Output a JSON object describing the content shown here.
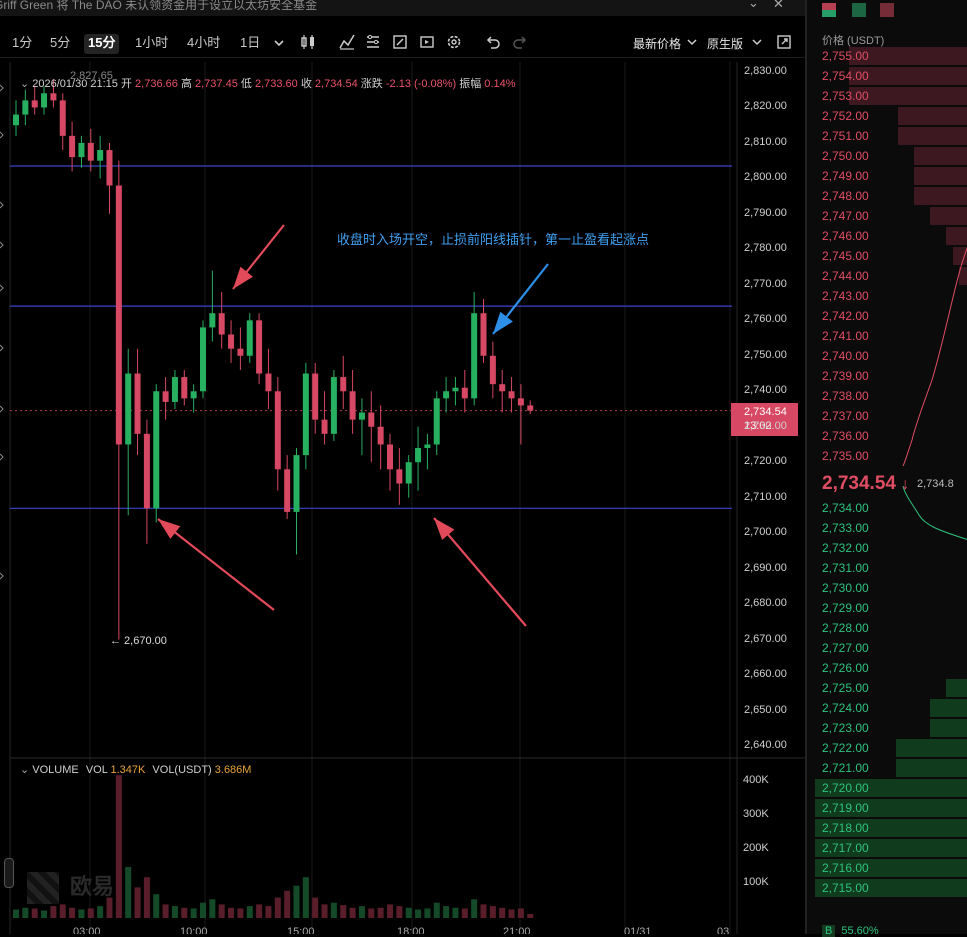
{
  "news_ticker": "Griff Green 将 The DAO 未认领资金用于设立以太坊安全基金",
  "window_controls": {
    "collapse": "⌄",
    "close": "✕"
  },
  "intervals": [
    {
      "label": "1分",
      "active": false
    },
    {
      "label": "5分",
      "active": false
    },
    {
      "label": "15分",
      "active": true
    },
    {
      "label": "1小时",
      "active": false
    },
    {
      "label": "4小时",
      "active": false
    },
    {
      "label": "1日",
      "active": false
    }
  ],
  "toolbar_icons": [
    "chevron-down-icon",
    "candle-type-icon",
    "indicators-icon",
    "template-icon",
    "drawing-icon",
    "replay-icon",
    "settings-icon",
    "undo-icon",
    "redo-icon"
  ],
  "price_type": "最新价格",
  "chart_style": "原生版",
  "ohlc": {
    "date": "2026/01/30 21:15",
    "open_label": "开",
    "open": "2,736.66",
    "high_label": "高",
    "high": "2,737.45",
    "low_label": "低",
    "low": "2,733.60",
    "close_label": "收",
    "close": "2,734.54",
    "change_label": "涨跌",
    "change": "-2.13 (-0.08%)",
    "amp_label": "振幅",
    "amp": "0.14%"
  },
  "max_label": "2,827.65",
  "min_label": "← 2,670.00",
  "annotation": "收盘时入场开空，止损前阳线插针，第一止盈看起涨点",
  "current_price_tag": {
    "price": "2,734.54",
    "countdown": "13:02"
  },
  "price_axis": [
    "2,830.00",
    "2,820.00",
    "2,810.00",
    "2,800.00",
    "2,790.00",
    "2,780.00",
    "2,770.00",
    "2,760.00",
    "2,750.00",
    "2,740.00",
    "2,730.00",
    "2,720.00",
    "2,710.00",
    "2,700.00",
    "2,690.00",
    "2,680.00",
    "2,670.00",
    "2,660.00",
    "2,650.00",
    "2,640.00"
  ],
  "volume": {
    "label": "VOLUME",
    "vol_label": "VOL",
    "vol": "1.347K",
    "vol_usdt_label": "VOL(USDT)",
    "vol_usdt": "3.686M"
  },
  "volume_axis": [
    "400K",
    "300K",
    "200K",
    "100K"
  ],
  "time_axis": [
    "03:00",
    "10:00",
    "15:00",
    "18:00",
    "21:00",
    "01/31",
    "03"
  ],
  "watermark": "欧易",
  "horizontal_levels": [
    2803.5,
    2764.0,
    2707.0
  ],
  "colors": {
    "up": "#27b060",
    "down": "#d64863",
    "level_line": "#3a45c8",
    "annotation": "#3f9ff0",
    "arrow_red": "#e24a5a",
    "arrow_blue": "#2e8fe8"
  },
  "chart_data": {
    "type": "candlestick",
    "ylim": [
      2640,
      2830
    ],
    "candles": [
      {
        "o": 2815,
        "h": 2822,
        "l": 2812,
        "c": 2818
      },
      {
        "o": 2818,
        "h": 2825,
        "l": 2815,
        "c": 2822
      },
      {
        "o": 2822,
        "h": 2826,
        "l": 2818,
        "c": 2820
      },
      {
        "o": 2820,
        "h": 2826,
        "l": 2818,
        "c": 2824
      },
      {
        "o": 2824,
        "h": 2828,
        "l": 2820,
        "c": 2822
      },
      {
        "o": 2822,
        "h": 2824,
        "l": 2808,
        "c": 2812
      },
      {
        "o": 2812,
        "h": 2816,
        "l": 2802,
        "c": 2806
      },
      {
        "o": 2806,
        "h": 2812,
        "l": 2803,
        "c": 2810
      },
      {
        "o": 2810,
        "h": 2814,
        "l": 2802,
        "c": 2805
      },
      {
        "o": 2805,
        "h": 2812,
        "l": 2800,
        "c": 2808
      },
      {
        "o": 2808,
        "h": 2810,
        "l": 2790,
        "c": 2798
      },
      {
        "o": 2798,
        "h": 2805,
        "l": 2670,
        "c": 2725
      },
      {
        "o": 2725,
        "h": 2752,
        "l": 2705,
        "c": 2745
      },
      {
        "o": 2745,
        "h": 2752,
        "l": 2722,
        "c": 2728
      },
      {
        "o": 2728,
        "h": 2732,
        "l": 2697,
        "c": 2707
      },
      {
        "o": 2707,
        "h": 2742,
        "l": 2703,
        "c": 2740
      },
      {
        "o": 2740,
        "h": 2744,
        "l": 2732,
        "c": 2737
      },
      {
        "o": 2737,
        "h": 2746,
        "l": 2735,
        "c": 2744
      },
      {
        "o": 2744,
        "h": 2746,
        "l": 2736,
        "c": 2738
      },
      {
        "o": 2738,
        "h": 2742,
        "l": 2734,
        "c": 2740
      },
      {
        "o": 2740,
        "h": 2760,
        "l": 2738,
        "c": 2758
      },
      {
        "o": 2758,
        "h": 2774,
        "l": 2754,
        "c": 2762
      },
      {
        "o": 2762,
        "h": 2768,
        "l": 2752,
        "c": 2756
      },
      {
        "o": 2756,
        "h": 2760,
        "l": 2748,
        "c": 2752
      },
      {
        "o": 2752,
        "h": 2758,
        "l": 2746,
        "c": 2750
      },
      {
        "o": 2750,
        "h": 2762,
        "l": 2748,
        "c": 2760
      },
      {
        "o": 2760,
        "h": 2762,
        "l": 2742,
        "c": 2745
      },
      {
        "o": 2745,
        "h": 2752,
        "l": 2735,
        "c": 2740
      },
      {
        "o": 2740,
        "h": 2744,
        "l": 2712,
        "c": 2718
      },
      {
        "o": 2718,
        "h": 2722,
        "l": 2704,
        "c": 2706
      },
      {
        "o": 2706,
        "h": 2724,
        "l": 2694,
        "c": 2722
      },
      {
        "o": 2722,
        "h": 2748,
        "l": 2718,
        "c": 2745
      },
      {
        "o": 2745,
        "h": 2748,
        "l": 2728,
        "c": 2732
      },
      {
        "o": 2732,
        "h": 2740,
        "l": 2725,
        "c": 2728
      },
      {
        "o": 2728,
        "h": 2746,
        "l": 2726,
        "c": 2744
      },
      {
        "o": 2744,
        "h": 2750,
        "l": 2735,
        "c": 2740
      },
      {
        "o": 2740,
        "h": 2746,
        "l": 2728,
        "c": 2732
      },
      {
        "o": 2732,
        "h": 2738,
        "l": 2722,
        "c": 2734
      },
      {
        "o": 2734,
        "h": 2740,
        "l": 2720,
        "c": 2730
      },
      {
        "o": 2730,
        "h": 2736,
        "l": 2718,
        "c": 2725
      },
      {
        "o": 2725,
        "h": 2728,
        "l": 2712,
        "c": 2718
      },
      {
        "o": 2718,
        "h": 2724,
        "l": 2708,
        "c": 2714
      },
      {
        "o": 2714,
        "h": 2722,
        "l": 2710,
        "c": 2720
      },
      {
        "o": 2720,
        "h": 2730,
        "l": 2712,
        "c": 2724
      },
      {
        "o": 2724,
        "h": 2728,
        "l": 2718,
        "c": 2725
      },
      {
        "o": 2725,
        "h": 2740,
        "l": 2722,
        "c": 2738
      },
      {
        "o": 2738,
        "h": 2744,
        "l": 2734,
        "c": 2740
      },
      {
        "o": 2740,
        "h": 2744,
        "l": 2736,
        "c": 2741
      },
      {
        "o": 2741,
        "h": 2746,
        "l": 2734,
        "c": 2738
      },
      {
        "o": 2738,
        "h": 2768,
        "l": 2736,
        "c": 2762
      },
      {
        "o": 2762,
        "h": 2766,
        "l": 2748,
        "c": 2750
      },
      {
        "o": 2750,
        "h": 2754,
        "l": 2738,
        "c": 2742
      },
      {
        "o": 2742,
        "h": 2746,
        "l": 2734,
        "c": 2740
      },
      {
        "o": 2740,
        "h": 2744,
        "l": 2734,
        "c": 2738
      },
      {
        "o": 2738,
        "h": 2742,
        "l": 2725,
        "c": 2736
      },
      {
        "o": 2736,
        "h": 2737.45,
        "l": 2733.6,
        "c": 2734.54
      }
    ],
    "volumes": [
      25,
      30,
      28,
      22,
      35,
      40,
      30,
      25,
      28,
      35,
      60,
      420,
      150,
      90,
      120,
      70,
      40,
      35,
      30,
      28,
      45,
      55,
      40,
      30,
      28,
      35,
      40,
      35,
      60,
      80,
      95,
      120,
      60,
      40,
      45,
      38,
      30,
      35,
      28,
      30,
      40,
      35,
      30,
      25,
      28,
      45,
      35,
      30,
      28,
      55,
      40,
      35,
      30,
      25,
      28,
      12
    ]
  },
  "orderbook": {
    "header": "价格 (USDT)",
    "asks": [
      {
        "price": "2,755.00",
        "depth": 0.74
      },
      {
        "price": "2,754.00",
        "depth": 0.74
      },
      {
        "price": "2,753.00",
        "depth": 0.74
      },
      {
        "price": "2,752.00",
        "depth": 0.44
      },
      {
        "price": "2,751.00",
        "depth": 0.44
      },
      {
        "price": "2,750.00",
        "depth": 0.34
      },
      {
        "price": "2,749.00",
        "depth": 0.34
      },
      {
        "price": "2,748.00",
        "depth": 0.34
      },
      {
        "price": "2,747.00",
        "depth": 0.24
      },
      {
        "price": "2,746.00",
        "depth": 0.14
      },
      {
        "price": "2,745.00",
        "depth": 0.1
      },
      {
        "price": "2,744.00",
        "depth": 0.06
      },
      {
        "price": "2,743.00",
        "depth": 0.0
      },
      {
        "price": "2,742.00",
        "depth": 0.0
      },
      {
        "price": "2,741.00",
        "depth": 0.0
      },
      {
        "price": "2,740.00",
        "depth": 0.0
      },
      {
        "price": "2,739.00",
        "depth": 0.0
      },
      {
        "price": "2,738.00",
        "depth": 0.0
      },
      {
        "price": "2,737.00",
        "depth": 0.0
      },
      {
        "price": "2,736.00",
        "depth": 0.0
      },
      {
        "price": "2,735.00",
        "depth": 0.0
      }
    ],
    "mid_price": "2,734.54",
    "mid_arrow": "↓",
    "mid_mark": "2,734.8",
    "bids": [
      {
        "price": "2,734.00",
        "depth": 0.0
      },
      {
        "price": "2,733.00",
        "depth": 0.0
      },
      {
        "price": "2,732.00",
        "depth": 0.0
      },
      {
        "price": "2,731.00",
        "depth": 0.0
      },
      {
        "price": "2,730.00",
        "depth": 0.0
      },
      {
        "price": "2,729.00",
        "depth": 0.0
      },
      {
        "price": "2,728.00",
        "depth": 0.0
      },
      {
        "price": "2,727.00",
        "depth": 0.0
      },
      {
        "price": "2,726.00",
        "depth": 0.0
      },
      {
        "price": "2,725.00",
        "depth": 0.14
      },
      {
        "price": "2,724.00",
        "depth": 0.24
      },
      {
        "price": "2,723.00",
        "depth": 0.24
      },
      {
        "price": "2,722.00",
        "depth": 0.45
      },
      {
        "price": "2,721.00",
        "depth": 0.45
      },
      {
        "price": "2,720.00",
        "depth": 0.95
      },
      {
        "price": "2,719.00",
        "depth": 0.95
      },
      {
        "price": "2,718.00",
        "depth": 0.95
      },
      {
        "price": "2,717.00",
        "depth": 0.95
      },
      {
        "price": "2,716.00",
        "depth": 0.95
      },
      {
        "price": "2,715.00",
        "depth": 0.95
      }
    ],
    "ratio": "55.60%",
    "ratio_badge": "B"
  }
}
